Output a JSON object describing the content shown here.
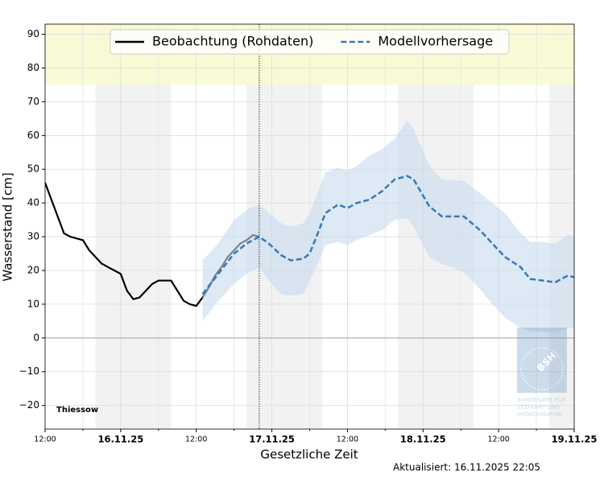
{
  "chart_data": {
    "type": "line",
    "station": "Thiessow",
    "xlabel": "Gesetzliche Zeit",
    "ylabel": "Wasserstand [cm]",
    "updated": "Aktualisiert: 16.11.2025 22:05",
    "watermark": {
      "logo": "BSH",
      "lines": [
        "BUNDESAMT FÜR",
        "SEEFAHRT UND",
        "HYDROGRAPHIE"
      ]
    },
    "legend": "upper center",
    "grid": true,
    "xlim": [
      0,
      84
    ],
    "ylim": [
      -27,
      93
    ],
    "xticks": [
      {
        "value": 0,
        "label": "12:00"
      },
      {
        "value": 12,
        "label": "16.11.25"
      },
      {
        "value": 24,
        "label": "12:00"
      },
      {
        "value": 36,
        "label": "17.11.25"
      },
      {
        "value": 48,
        "label": "12:00"
      },
      {
        "value": 60,
        "label": "18.11.25"
      },
      {
        "value": 72,
        "label": "12:00"
      },
      {
        "value": 84,
        "label": "19.11.25"
      }
    ],
    "xminorticks": [
      6,
      18,
      30,
      42,
      54,
      66,
      78
    ],
    "yticks": [
      {
        "value": -20,
        "label": "−20"
      },
      {
        "value": -10,
        "label": "−10"
      },
      0,
      10,
      20,
      30,
      40,
      50,
      60,
      70,
      80,
      90
    ],
    "night_bands": [
      [
        8,
        20
      ],
      [
        32,
        44
      ],
      [
        56,
        68
      ],
      [
        80,
        92
      ]
    ],
    "night_color": "#f2f2f2",
    "warning_band": [
      75,
      93
    ],
    "warning_color": "#fafad2",
    "now": 34,
    "series": [
      {
        "name": "Beobachtung (Rohdaten)",
        "color": "#000000",
        "dash": false,
        "x": [
          0,
          1,
          2,
          3,
          4,
          5,
          6,
          7,
          8,
          9,
          10,
          11,
          12,
          13,
          14,
          15,
          16,
          17,
          18,
          19,
          20,
          21,
          22,
          23,
          24,
          25,
          26,
          27,
          28,
          29,
          30,
          31,
          32,
          33,
          34
        ],
        "values": [
          46,
          41,
          36,
          31,
          30,
          29.5,
          29,
          26,
          24,
          22,
          21,
          20,
          19,
          14,
          11.5,
          12,
          14,
          16,
          17,
          17,
          17,
          14,
          11,
          10,
          9.5,
          12,
          15,
          18.5,
          21,
          24,
          26,
          28,
          29,
          30.5,
          30
        ]
      },
      {
        "name": "Modellvorhersage",
        "color": "#3a78b5",
        "dash": true,
        "band_color": "#c6dbef",
        "x": [
          25,
          27.5,
          30,
          32,
          34,
          35.5,
          37.5,
          39,
          41,
          42,
          43.5,
          44.5,
          46.5,
          48,
          49.5,
          51.5,
          53.5,
          55.5,
          57.5,
          58.5,
          61,
          63,
          66.5,
          69,
          71,
          73,
          75.5,
          77,
          79,
          81,
          83,
          84
        ],
        "values": [
          13,
          19,
          25,
          28,
          30,
          28,
          24.5,
          23,
          23.5,
          25,
          32,
          37,
          39.5,
          38.5,
          40,
          41,
          43.5,
          47,
          48,
          47,
          39,
          36,
          36,
          32,
          28,
          24,
          21,
          17.5,
          17,
          16.5,
          18.5,
          18
        ],
        "upper": [
          23,
          28,
          35,
          38,
          39.5,
          37,
          34,
          33,
          34,
          37,
          44,
          49,
          50.5,
          49.5,
          51,
          54,
          56,
          59,
          64.5,
          62,
          51,
          47,
          46.5,
          43,
          40,
          37,
          31,
          28.5,
          28.5,
          28,
          30.5,
          30
        ],
        "lower": [
          5,
          11,
          16,
          19,
          21,
          17,
          13,
          12.5,
          13,
          17,
          23,
          27.5,
          28.5,
          27.5,
          29,
          30.5,
          32,
          35,
          35.5,
          33,
          24,
          22,
          19.5,
          14.5,
          10,
          6,
          3,
          2,
          2,
          1.5,
          3,
          3
        ]
      }
    ]
  }
}
